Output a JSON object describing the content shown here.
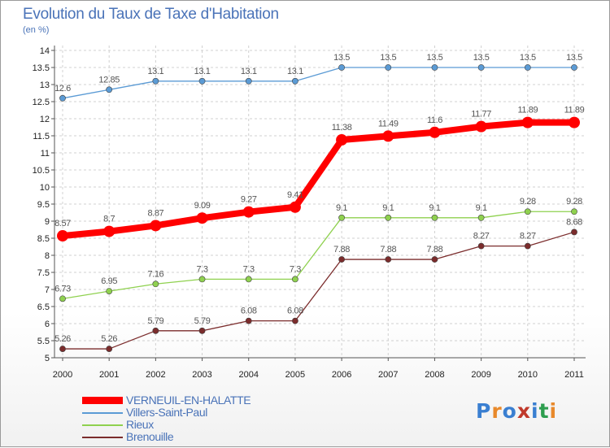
{
  "chart_data": {
    "type": "line",
    "title": "Evolution du Taux de Taxe d'Habitation",
    "subtitle": "(en %)",
    "x": [
      "2000",
      "2001",
      "2002",
      "2003",
      "2004",
      "2005",
      "2006",
      "2007",
      "2008",
      "2009",
      "2010",
      "2011"
    ],
    "yticks": [
      "5",
      "5.5",
      "6",
      "6.5",
      "7",
      "7.5",
      "8",
      "8.5",
      "9",
      "9.5",
      "10",
      "10.5",
      "11",
      "11.5",
      "12",
      "12.5",
      "13",
      "13.5",
      "14"
    ],
    "ylim": [
      5,
      14
    ],
    "grid": true,
    "legend_position": "bottom-left",
    "series": [
      {
        "name": "VERNEUIL-EN-HALATTE",
        "color": "#ff0000",
        "emphasis": true,
        "values": [
          8.57,
          8.7,
          8.87,
          9.09,
          9.27,
          9.41,
          11.38,
          11.49,
          11.6,
          11.77,
          11.89,
          11.89
        ],
        "labels": [
          "8.57",
          "8.7",
          "8.87",
          "9.09",
          "9.27",
          "9.41",
          "11.38",
          "11.49",
          "11.6",
          "11.77",
          "11.89",
          "11.89"
        ]
      },
      {
        "name": "Villers-Saint-Paul",
        "color": "#5b9bd5",
        "emphasis": false,
        "values": [
          12.6,
          12.85,
          13.1,
          13.1,
          13.1,
          13.1,
          13.5,
          13.5,
          13.5,
          13.5,
          13.5,
          13.5
        ],
        "labels": [
          "12.6",
          "12.85",
          "13.1",
          "13.1",
          "13.1",
          "13.1",
          "13.5",
          "13.5",
          "13.5",
          "13.5",
          "13.5",
          "13.5"
        ]
      },
      {
        "name": "Rieux",
        "color": "#8fd14f",
        "emphasis": false,
        "values": [
          6.73,
          6.95,
          7.16,
          7.3,
          7.3,
          7.3,
          9.1,
          9.1,
          9.1,
          9.1,
          9.28,
          9.28
        ],
        "labels": [
          "6.73",
          "6.95",
          "7.16",
          "7.3",
          "7.3",
          "7.3",
          "9.1",
          "9.1",
          "9.1",
          "9.1",
          "9.28",
          "9.28"
        ]
      },
      {
        "name": "Brenouille",
        "color": "#7b2c2c",
        "emphasis": false,
        "values": [
          5.26,
          5.26,
          5.79,
          5.79,
          6.08,
          6.08,
          7.88,
          7.88,
          7.88,
          8.27,
          8.27,
          8.68
        ],
        "labels": [
          "5.26",
          "5.26",
          "5.79",
          "5.79",
          "6.08",
          "6.08",
          "7.88",
          "7.88",
          "7.88",
          "8.27",
          "8.27",
          "8.68"
        ]
      }
    ]
  },
  "logo": {
    "text": "Proxiti",
    "colors": [
      "#3a7fd1",
      "#e8892b",
      "#3a7fd1",
      "#c0392b",
      "#3a7fd1",
      "#2e9e4f",
      "#e8892b"
    ]
  }
}
